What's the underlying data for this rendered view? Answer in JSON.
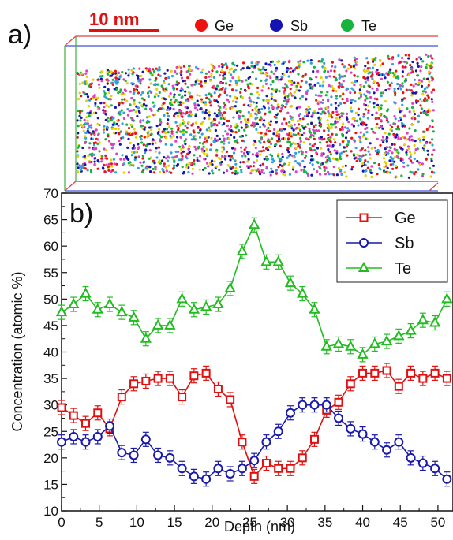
{
  "panel_a": {
    "label": "a)",
    "scale_bar": "10 nm",
    "scale_bar_color": "#e01010",
    "legend": [
      {
        "name": "Ge",
        "color": "#ee1111"
      },
      {
        "name": "Sb",
        "color": "#1414b4"
      },
      {
        "name": "Te",
        "color": "#16b43c"
      }
    ]
  },
  "chart_data": {
    "type": "line",
    "panel_label": "b)",
    "title": "",
    "xlabel": "Depth (nm)",
    "ylabel": "Concentration (atomic %)",
    "xlim": [
      0,
      52
    ],
    "ylim": [
      10,
      70
    ],
    "x_ticks": [
      0,
      5,
      10,
      15,
      20,
      25,
      30,
      35,
      40,
      45,
      50
    ],
    "y_ticks": [
      10,
      15,
      20,
      25,
      30,
      35,
      40,
      45,
      50,
      55,
      60,
      65,
      70
    ],
    "legend_position": "top-right",
    "x": [
      0,
      1.6,
      3.2,
      4.8,
      6.4,
      8.0,
      9.6,
      11.2,
      12.8,
      14.4,
      16.0,
      17.6,
      19.2,
      20.8,
      22.4,
      24.0,
      25.6,
      27.2,
      28.8,
      30.4,
      32.0,
      33.6,
      35.2,
      36.8,
      38.4,
      40.0,
      41.6,
      43.2,
      44.8,
      46.4,
      48.0,
      49.6,
      51.2
    ],
    "series": [
      {
        "name": "Ge",
        "color": "#e01010",
        "marker": "square",
        "values": [
          29.5,
          28,
          26.5,
          28.5,
          25.5,
          31.5,
          34,
          34.5,
          35,
          35,
          31.5,
          35.5,
          36,
          33,
          31,
          23,
          16.5,
          19,
          18,
          18,
          20,
          23.5,
          29,
          30.5,
          34,
          36,
          36,
          36.5,
          33.5,
          36,
          35,
          36,
          35
        ]
      },
      {
        "name": "Sb",
        "color": "#1a1aaa",
        "marker": "circle",
        "values": [
          23,
          24,
          23,
          24,
          26,
          21,
          20.5,
          23.5,
          20.5,
          20,
          18,
          16.5,
          16,
          18,
          17,
          18,
          19.5,
          23,
          25,
          28.5,
          30,
          30,
          30,
          27.5,
          25.5,
          24.5,
          23,
          21.5,
          23,
          20,
          19,
          18,
          16
        ]
      },
      {
        "name": "Te",
        "color": "#22bb22",
        "marker": "triangle",
        "values": [
          47.5,
          49,
          51,
          48,
          49,
          47.5,
          46.5,
          42.5,
          45,
          45,
          50,
          48,
          48.5,
          49,
          52,
          59,
          64,
          57,
          57,
          53,
          51,
          48,
          41,
          41.5,
          41,
          39.5,
          41.5,
          42,
          43,
          44,
          46,
          45.5,
          50
        ]
      }
    ]
  }
}
